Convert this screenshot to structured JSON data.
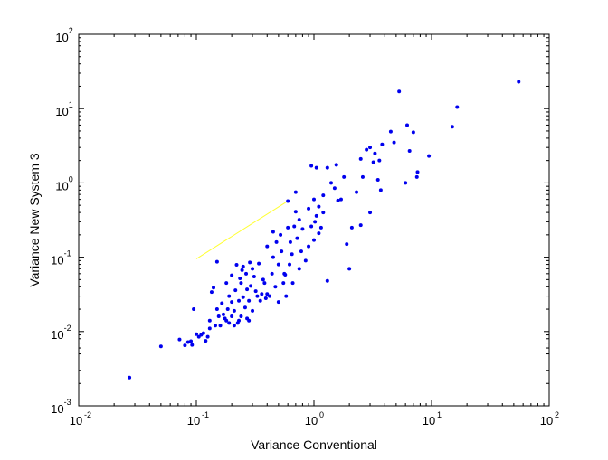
{
  "chart_data": {
    "type": "scatter",
    "title": "",
    "xlabel": "Variance Conventional",
    "ylabel": "Variance New System 3",
    "xscale": "log",
    "yscale": "log",
    "xlim": [
      0.01,
      100
    ],
    "ylim": [
      0.001,
      100
    ],
    "grid": false,
    "box": true,
    "legend": "none",
    "x_ticks": [
      {
        "base": "10",
        "exp": "-2",
        "value": 0.01
      },
      {
        "base": "10",
        "exp": "-1",
        "value": 0.1
      },
      {
        "base": "10",
        "exp": "0",
        "value": 1
      },
      {
        "base": "10",
        "exp": "1",
        "value": 10
      },
      {
        "base": "10",
        "exp": "2",
        "value": 100
      }
    ],
    "y_ticks": [
      {
        "base": "10",
        "exp": "-3",
        "value": 0.001
      },
      {
        "base": "10",
        "exp": "-2",
        "value": 0.01
      },
      {
        "base": "10",
        "exp": "-1",
        "value": 0.1
      },
      {
        "base": "10",
        "exp": "0",
        "value": 1
      },
      {
        "base": "10",
        "exp": "1",
        "value": 10
      },
      {
        "base": "10",
        "exp": "2",
        "value": 100
      }
    ],
    "colors": {
      "points": "#0000ee",
      "line": "#ffff33",
      "axes": "#000000"
    },
    "series": [
      {
        "kind": "points",
        "points": [
          [
            0.027,
            0.0024
          ],
          [
            0.05,
            0.0063
          ],
          [
            0.072,
            0.0078
          ],
          [
            0.08,
            0.0065
          ],
          [
            0.085,
            0.0072
          ],
          [
            0.09,
            0.0074
          ],
          [
            0.092,
            0.0066
          ],
          [
            0.095,
            0.02
          ],
          [
            0.1,
            0.0092
          ],
          [
            0.105,
            0.0085
          ],
          [
            0.11,
            0.009
          ],
          [
            0.115,
            0.0095
          ],
          [
            0.12,
            0.0075
          ],
          [
            0.125,
            0.0085
          ],
          [
            0.13,
            0.011
          ],
          [
            0.13,
            0.014
          ],
          [
            0.135,
            0.034
          ],
          [
            0.14,
            0.039
          ],
          [
            0.145,
            0.012
          ],
          [
            0.15,
            0.02
          ],
          [
            0.15,
            0.087
          ],
          [
            0.155,
            0.016
          ],
          [
            0.16,
            0.012
          ],
          [
            0.165,
            0.024
          ],
          [
            0.17,
            0.017
          ],
          [
            0.175,
            0.015
          ],
          [
            0.18,
            0.014
          ],
          [
            0.18,
            0.045
          ],
          [
            0.185,
            0.02
          ],
          [
            0.19,
            0.013
          ],
          [
            0.19,
            0.03
          ],
          [
            0.2,
            0.016
          ],
          [
            0.2,
            0.025
          ],
          [
            0.2,
            0.057
          ],
          [
            0.21,
            0.012
          ],
          [
            0.21,
            0.019
          ],
          [
            0.215,
            0.036
          ],
          [
            0.22,
            0.079
          ],
          [
            0.225,
            0.013
          ],
          [
            0.23,
            0.014
          ],
          [
            0.23,
            0.026
          ],
          [
            0.235,
            0.052
          ],
          [
            0.24,
            0.016
          ],
          [
            0.24,
            0.045
          ],
          [
            0.245,
            0.067
          ],
          [
            0.25,
            0.029
          ],
          [
            0.25,
            0.075
          ],
          [
            0.26,
            0.021
          ],
          [
            0.265,
            0.06
          ],
          [
            0.27,
            0.015
          ],
          [
            0.27,
            0.037
          ],
          [
            0.28,
            0.014
          ],
          [
            0.28,
            0.026
          ],
          [
            0.285,
            0.085
          ],
          [
            0.29,
            0.041
          ],
          [
            0.3,
            0.019
          ],
          [
            0.3,
            0.07
          ],
          [
            0.31,
            0.055
          ],
          [
            0.32,
            0.035
          ],
          [
            0.33,
            0.03
          ],
          [
            0.34,
            0.082
          ],
          [
            0.35,
            0.026
          ],
          [
            0.36,
            0.032
          ],
          [
            0.37,
            0.05
          ],
          [
            0.38,
            0.045
          ],
          [
            0.39,
            0.028
          ],
          [
            0.4,
            0.14
          ],
          [
            0.4,
            0.032
          ],
          [
            0.42,
            0.03
          ],
          [
            0.44,
            0.06
          ],
          [
            0.45,
            0.1
          ],
          [
            0.45,
            0.22
          ],
          [
            0.47,
            0.04
          ],
          [
            0.48,
            0.16
          ],
          [
            0.5,
            0.08
          ],
          [
            0.5,
            0.025
          ],
          [
            0.52,
            0.2
          ],
          [
            0.53,
            0.12
          ],
          [
            0.55,
            0.045
          ],
          [
            0.56,
            0.06
          ],
          [
            0.57,
            0.058
          ],
          [
            0.58,
            0.03
          ],
          [
            0.6,
            0.25
          ],
          [
            0.6,
            0.57
          ],
          [
            0.62,
            0.08
          ],
          [
            0.63,
            0.16
          ],
          [
            0.65,
            0.11
          ],
          [
            0.66,
            0.045
          ],
          [
            0.68,
            0.26
          ],
          [
            0.7,
            0.41
          ],
          [
            0.7,
            0.75
          ],
          [
            0.72,
            0.18
          ],
          [
            0.75,
            0.07
          ],
          [
            0.75,
            0.32
          ],
          [
            0.78,
            0.12
          ],
          [
            0.8,
            0.24
          ],
          [
            0.85,
            0.09
          ],
          [
            0.9,
            0.14
          ],
          [
            0.9,
            0.45
          ],
          [
            0.95,
            0.26
          ],
          [
            1.0,
            0.6
          ],
          [
            1.0,
            0.17
          ],
          [
            1.02,
            0.3
          ],
          [
            1.05,
            0.36
          ],
          [
            1.1,
            0.48
          ],
          [
            1.1,
            0.21
          ],
          [
            1.15,
            0.25
          ],
          [
            1.2,
            0.68
          ],
          [
            1.2,
            0.4
          ],
          [
            1.3,
            1.6
          ],
          [
            1.3,
            0.048
          ],
          [
            1.4,
            1.0
          ],
          [
            1.5,
            0.85
          ],
          [
            1.6,
            0.58
          ],
          [
            1.7,
            0.6
          ],
          [
            1.8,
            1.2
          ],
          [
            1.9,
            0.15
          ],
          [
            2.0,
            0.07
          ],
          [
            2.1,
            0.25
          ],
          [
            2.3,
            0.75
          ],
          [
            2.5,
            0.27
          ],
          [
            2.6,
            1.2
          ],
          [
            3.0,
            0.4
          ],
          [
            3.2,
            1.9
          ],
          [
            3.5,
            1.1
          ],
          [
            3.7,
            0.8
          ],
          [
            0.95,
            1.7
          ],
          [
            1.05,
            1.6
          ],
          [
            1.55,
            1.75
          ],
          [
            2.5,
            2.1
          ],
          [
            2.8,
            2.8
          ],
          [
            3.0,
            3.0
          ],
          [
            3.3,
            2.5
          ],
          [
            3.6,
            2.0
          ],
          [
            3.8,
            3.3
          ],
          [
            4.5,
            4.9
          ],
          [
            4.8,
            3.5
          ],
          [
            5.3,
            17.0
          ],
          [
            6.0,
            1.0
          ],
          [
            6.2,
            6.0
          ],
          [
            6.5,
            2.7
          ],
          [
            7.0,
            4.8
          ],
          [
            7.5,
            1.2
          ],
          [
            7.6,
            1.4
          ],
          [
            9.5,
            2.3
          ],
          [
            15.0,
            5.7
          ],
          [
            16.5,
            10.5
          ],
          [
            55.0,
            23.0
          ]
        ]
      },
      {
        "kind": "line",
        "points": [
          [
            0.1,
            0.095
          ],
          [
            0.6,
            0.57
          ]
        ]
      }
    ]
  }
}
